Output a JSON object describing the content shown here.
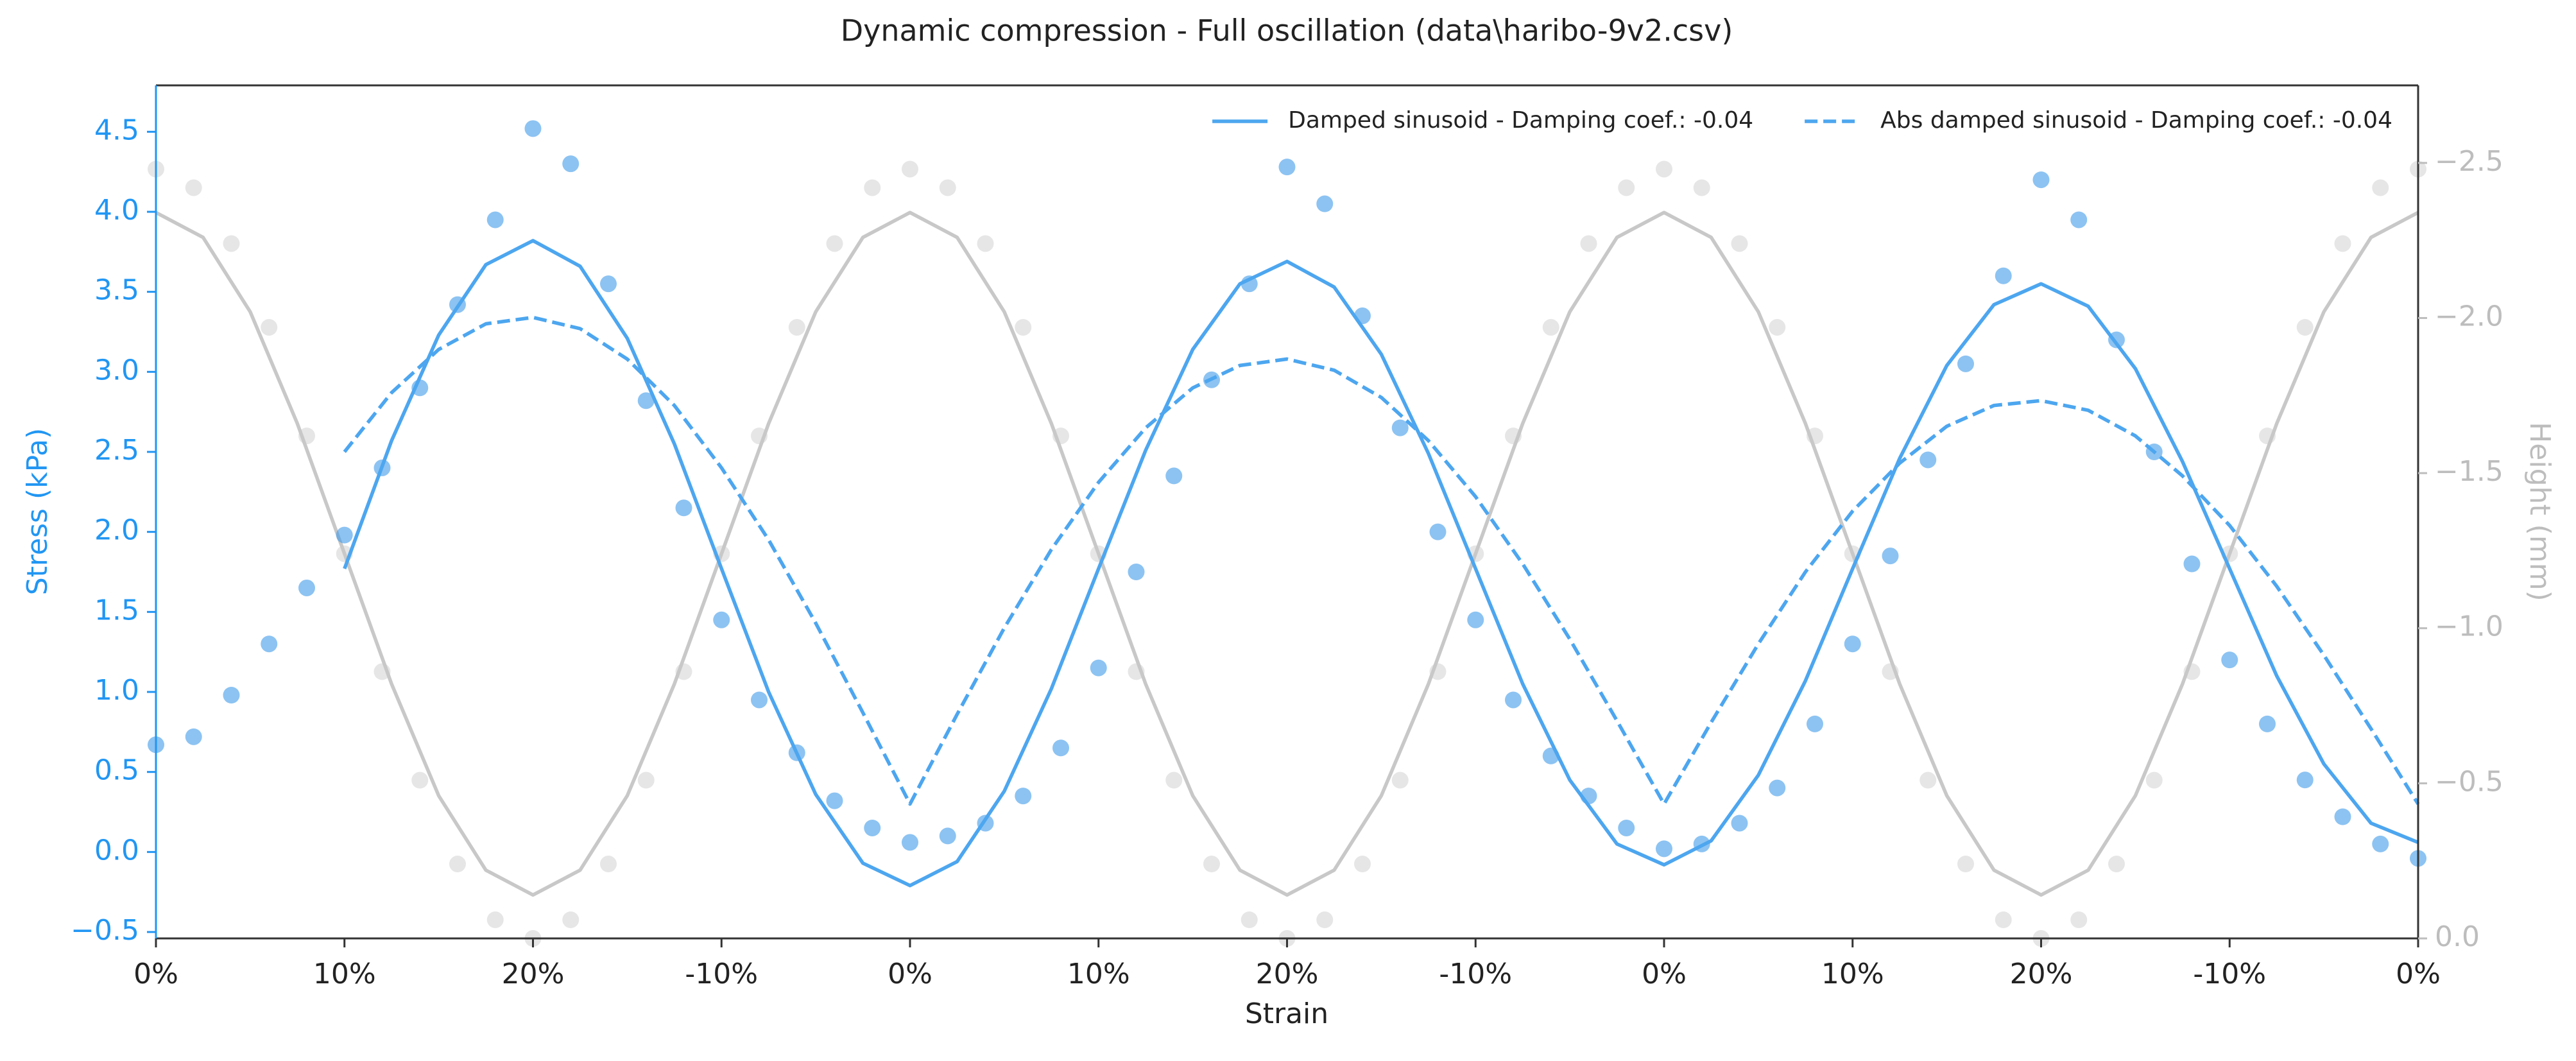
{
  "chart_data": {
    "type": "line",
    "title": "Dynamic compression - Full oscillation (data\\haribo-9v2.csv)",
    "x_label": "Strain",
    "y_label": "Stress (kPa)",
    "y2_label": "Height (mm)",
    "y_color": "#2196f3",
    "y2_color": "#bdbdbd",
    "legend": "upper right",
    "xlim": [
      0,
      12
    ],
    "xticks": [
      {
        "value": 0,
        "label": "0%"
      },
      {
        "value": 1,
        "label": "10%"
      },
      {
        "value": 2,
        "label": "20%"
      },
      {
        "value": 3,
        "label": "-10%"
      },
      {
        "value": 4,
        "label": "0%"
      },
      {
        "value": 5,
        "label": "10%"
      },
      {
        "value": 6,
        "label": "20%"
      },
      {
        "value": 7,
        "label": "-10%"
      },
      {
        "value": 8,
        "label": "0%"
      },
      {
        "value": 9,
        "label": "10%"
      },
      {
        "value": 10,
        "label": "20%"
      },
      {
        "value": 11,
        "label": "-10%"
      },
      {
        "value": 12,
        "label": "0%"
      }
    ],
    "ylim": [
      -0.54,
      4.79
    ],
    "yticks": [
      {
        "value": -0.5,
        "label": "−0.5"
      },
      {
        "value": 0,
        "label": "0.0"
      },
      0.5,
      {
        "value": 1,
        "label": "1.0"
      },
      1.5,
      {
        "value": 2,
        "label": "2.0"
      },
      2.5,
      {
        "value": 3,
        "label": "3.0"
      },
      3.5,
      {
        "value": 4,
        "label": "4.0"
      },
      4.5
    ],
    "y2lim": [
      0,
      -2.75
    ],
    "y2ticks": [
      {
        "value": 0,
        "label": "0.0"
      },
      {
        "value": -0.5,
        "label": "−0.5"
      },
      {
        "value": -1,
        "label": "−1.0"
      },
      {
        "value": -1.5,
        "label": "−1.5"
      },
      {
        "value": -2,
        "label": "−2.0"
      },
      {
        "value": -2.5,
        "label": "−2.5"
      }
    ],
    "series": [
      {
        "type": "scatter",
        "axis": "y2",
        "color": "#d6d6d6",
        "x": [
          0,
          0.2,
          0.4,
          0.6,
          0.8,
          1,
          1.2,
          1.4,
          1.6,
          1.8,
          2,
          2.2,
          2.4,
          2.6,
          2.8,
          3,
          3.2,
          3.4,
          3.6,
          3.8,
          4,
          4.2,
          4.4,
          4.6,
          4.8,
          5,
          5.2,
          5.4,
          5.6,
          5.8,
          6,
          6.2,
          6.4,
          6.6,
          6.8,
          7,
          7.2,
          7.4,
          7.6,
          7.8,
          8,
          8.2,
          8.4,
          8.6,
          8.8,
          9,
          9.2,
          9.4,
          9.6,
          9.8,
          10,
          10.2,
          10.4,
          10.6,
          10.8,
          11,
          11.2,
          11.4,
          11.6,
          11.8,
          12
        ],
        "values": [
          -2.48,
          -2.42,
          -2.24,
          -1.97,
          -1.62,
          -1.24,
          -0.86,
          -0.51,
          -0.24,
          -0.06,
          0.0,
          -0.06,
          -0.24,
          -0.51,
          -0.86,
          -1.24,
          -1.62,
          -1.97,
          -2.24,
          -2.42,
          -2.48,
          -2.42,
          -2.24,
          -1.97,
          -1.62,
          -1.24,
          -0.86,
          -0.51,
          -0.24,
          -0.06,
          0.0,
          -0.06,
          -0.24,
          -0.51,
          -0.86,
          -1.24,
          -1.62,
          -1.97,
          -2.24,
          -2.42,
          -2.48,
          -2.42,
          -2.24,
          -1.97,
          -1.62,
          -1.24,
          -0.86,
          -0.51,
          -0.24,
          -0.06,
          0.0,
          -0.06,
          -0.24,
          -0.51,
          -0.86,
          -1.24,
          -1.62,
          -1.97,
          -2.24,
          -2.42,
          -2.48
        ]
      },
      {
        "type": "line",
        "axis": "y2",
        "color": "#c8c8c8",
        "x": [
          0,
          0.25,
          0.5,
          0.75,
          1,
          1.25,
          1.5,
          1.75,
          2,
          2.25,
          2.5,
          2.75,
          3,
          3.25,
          3.5,
          3.75,
          4,
          4.25,
          4.5,
          4.75,
          5,
          5.25,
          5.5,
          5.75,
          6,
          6.25,
          6.5,
          6.75,
          7,
          7.25,
          7.5,
          7.75,
          8,
          8.25,
          8.5,
          8.75,
          9,
          9.25,
          9.5,
          9.75,
          10,
          10.25,
          10.5,
          10.75,
          11,
          11.25,
          11.5,
          11.75,
          12
        ],
        "values": [
          -2.34,
          -2.26,
          -2.02,
          -1.66,
          -1.24,
          -0.82,
          -0.46,
          -0.22,
          -0.14,
          -0.22,
          -0.46,
          -0.82,
          -1.24,
          -1.66,
          -2.02,
          -2.26,
          -2.34,
          -2.26,
          -2.02,
          -1.66,
          -1.24,
          -0.82,
          -0.46,
          -0.22,
          -0.14,
          -0.22,
          -0.46,
          -0.82,
          -1.24,
          -1.66,
          -2.02,
          -2.26,
          -2.34,
          -2.26,
          -2.02,
          -1.66,
          -1.24,
          -0.82,
          -0.46,
          -0.22,
          -0.14,
          -0.22,
          -0.46,
          -0.82,
          -1.24,
          -1.66,
          -2.02,
          -2.26,
          -2.34
        ]
      },
      {
        "type": "scatter",
        "color": "#3f9be9",
        "x": [
          0,
          0.2,
          0.4,
          0.6,
          0.8,
          1,
          1.2,
          1.4,
          1.6,
          1.8,
          2,
          2.2,
          2.4,
          2.6,
          2.8,
          3,
          3.2,
          3.4,
          3.6,
          3.8,
          4,
          4.2,
          4.4,
          4.6,
          4.8,
          5,
          5.2,
          5.4,
          5.6,
          5.8,
          6,
          6.2,
          6.4,
          6.6,
          6.8,
          7,
          7.2,
          7.4,
          7.6,
          7.8,
          8,
          8.2,
          8.4,
          8.6,
          8.8,
          9,
          9.2,
          9.4,
          9.6,
          9.8,
          10,
          10.2,
          10.4,
          10.6,
          10.8,
          11,
          11.2,
          11.4,
          11.6,
          11.8,
          12
        ],
        "values": [
          0.67,
          0.72,
          0.98,
          1.3,
          1.65,
          1.98,
          2.4,
          2.9,
          3.42,
          3.95,
          4.52,
          4.3,
          3.55,
          2.82,
          2.15,
          1.45,
          0.95,
          0.62,
          0.32,
          0.15,
          0.06,
          0.1,
          0.18,
          0.35,
          0.65,
          1.15,
          1.75,
          2.35,
          2.95,
          3.55,
          4.28,
          4.05,
          3.35,
          2.65,
          2.0,
          1.45,
          0.95,
          0.6,
          0.35,
          0.15,
          0.02,
          0.05,
          0.18,
          0.4,
          0.8,
          1.3,
          1.85,
          2.45,
          3.05,
          3.6,
          4.2,
          3.95,
          3.2,
          2.5,
          1.8,
          1.2,
          0.8,
          0.45,
          0.22,
          0.05,
          -0.04
        ]
      },
      {
        "name": "Damped sinusoid - Damping coef.: -0.04",
        "type": "line",
        "color": "#4da6ef",
        "x": [
          1,
          1.25,
          1.5,
          1.75,
          2,
          2.25,
          2.5,
          2.75,
          3,
          3.25,
          3.5,
          3.75,
          4,
          4.25,
          4.5,
          4.75,
          5,
          5.25,
          5.5,
          5.75,
          6,
          6.25,
          6.5,
          6.75,
          7,
          7.25,
          7.5,
          7.75,
          8,
          8.25,
          8.5,
          8.75,
          9,
          9.25,
          9.5,
          9.75,
          10,
          10.25,
          10.5,
          10.75,
          11,
          11.25,
          11.5,
          11.75,
          12
        ],
        "values": [
          1.77,
          2.57,
          3.23,
          3.67,
          3.82,
          3.66,
          3.21,
          2.55,
          1.77,
          1.0,
          0.36,
          -0.07,
          -0.21,
          -0.06,
          0.38,
          1.02,
          1.77,
          2.51,
          3.14,
          3.55,
          3.69,
          3.53,
          3.11,
          2.49,
          1.77,
          1.05,
          0.45,
          0.05,
          -0.08,
          0.07,
          0.48,
          1.07,
          1.77,
          2.46,
          3.04,
          3.42,
          3.55,
          3.41,
          3.02,
          2.44,
          1.77,
          1.1,
          0.55,
          0.18,
          0.06
        ]
      },
      {
        "name": "Abs damped sinusoid - Damping coef.: -0.04",
        "type": "line",
        "dash": true,
        "color": "#4da6ef",
        "x": [
          1,
          1.25,
          1.5,
          1.75,
          2,
          2.25,
          2.5,
          2.75,
          3,
          3.25,
          3.5,
          3.75,
          4,
          4.25,
          4.5,
          4.75,
          5,
          5.25,
          5.5,
          5.75,
          6,
          6.25,
          6.5,
          6.75,
          7,
          7.25,
          7.5,
          7.75,
          8,
          8.25,
          8.5,
          8.75,
          9,
          9.25,
          9.5,
          9.75,
          10,
          10.25,
          10.5,
          10.75,
          11,
          11.25,
          11.5,
          11.75,
          12
        ],
        "values": [
          2.5,
          2.87,
          3.14,
          3.3,
          3.34,
          3.27,
          3.08,
          2.79,
          2.4,
          1.95,
          1.43,
          0.87,
          0.3,
          0.86,
          1.4,
          1.89,
          2.31,
          2.65,
          2.9,
          3.04,
          3.08,
          3.01,
          2.84,
          2.57,
          2.22,
          1.8,
          1.33,
          0.82,
          0.3,
          0.81,
          1.3,
          1.75,
          2.13,
          2.43,
          2.66,
          2.79,
          2.82,
          2.76,
          2.6,
          2.35,
          2.04,
          1.66,
          1.23,
          0.77,
          0.3
        ]
      }
    ]
  }
}
